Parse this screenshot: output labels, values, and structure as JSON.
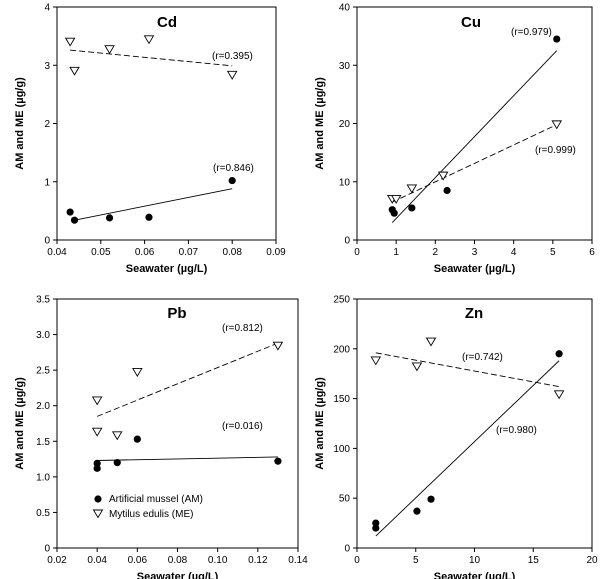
{
  "legend": {
    "am_label": "Artificial mussel (AM)",
    "me_label": "Mytilus edulis (ME)",
    "placement": "bottom-left of Pb panel"
  },
  "chart_data": [
    {
      "type": "scatter",
      "title": "Cd",
      "xlabel": "Seawater (µg/L)",
      "ylabel": "AM and ME (µg/g)",
      "xlim": [
        0.04,
        0.09
      ],
      "ylim": [
        0,
        4
      ],
      "xticks": [
        "0.04",
        "0.05",
        "0.06",
        "0.07",
        "0.08",
        "0.09"
      ],
      "yticks": [
        "0",
        "1",
        "2",
        "3",
        "4"
      ],
      "series": [
        {
          "name": "Artificial mussel (AM)",
          "marker": "filled-circle",
          "x": [
            0.043,
            0.044,
            0.052,
            0.061,
            0.08
          ],
          "y": [
            0.48,
            0.34,
            0.38,
            0.39,
            1.02
          ],
          "fit": {
            "x": [
              0.044,
              0.08
            ],
            "y": [
              0.34,
              0.88
            ],
            "style": "solid"
          },
          "r_label": "(r=0.846)"
        },
        {
          "name": "Mytilus edulis (ME)",
          "marker": "open-triangle-down",
          "x": [
            0.043,
            0.044,
            0.052,
            0.061,
            0.08
          ],
          "y": [
            3.4,
            2.9,
            3.27,
            3.44,
            2.83
          ],
          "fit": {
            "x": [
              0.043,
              0.08
            ],
            "y": [
              3.26,
              2.99
            ],
            "style": "dashed"
          },
          "r_label": "(r=0.395)"
        }
      ]
    },
    {
      "type": "scatter",
      "title": "Cu",
      "xlabel": "Seawater (µg/L)",
      "ylabel": "AM and ME (µg/g)",
      "xlim": [
        0,
        6
      ],
      "ylim": [
        0,
        40
      ],
      "xticks": [
        "0",
        "1",
        "2",
        "3",
        "4",
        "5",
        "6"
      ],
      "yticks": [
        "0",
        "10",
        "20",
        "30",
        "40"
      ],
      "series": [
        {
          "name": "Artificial mussel (AM)",
          "marker": "filled-circle",
          "x": [
            0.9,
            0.95,
            1.4,
            2.3,
            5.1
          ],
          "y": [
            5.2,
            4.6,
            5.5,
            8.5,
            34.5
          ],
          "fit": {
            "x": [
              0.9,
              5.1
            ],
            "y": [
              3.0,
              32.5
            ],
            "style": "solid"
          },
          "r_label": "(r=0.979)"
        },
        {
          "name": "Mytilus edulis (ME)",
          "marker": "open-triangle-down",
          "x": [
            0.9,
            1.0,
            1.4,
            2.2,
            5.1
          ],
          "y": [
            7.0,
            7.0,
            8.8,
            11.0,
            19.8
          ],
          "fit": {
            "x": [
              0.9,
              5.1
            ],
            "y": [
              6.5,
              19.8
            ],
            "style": "dashed"
          },
          "r_label": "(r=0.999)"
        }
      ]
    },
    {
      "type": "scatter",
      "title": "Pb",
      "xlabel": "Seawater (µg/L)",
      "ylabel": "AM and ME (µg/g)",
      "xlim": [
        0.02,
        0.14
      ],
      "ylim": [
        0,
        3.5
      ],
      "xticks": [
        "0.02",
        "0.04",
        "0.06",
        "0.08",
        "0.10",
        "0.12",
        "0.14"
      ],
      "yticks": [
        "0",
        "0.5",
        "1.0",
        "1.5",
        "2.0",
        "2.5",
        "3.0",
        "3.5"
      ],
      "series": [
        {
          "name": "Artificial mussel (AM)",
          "marker": "filled-circle",
          "x": [
            0.04,
            0.04,
            0.05,
            0.06,
            0.13
          ],
          "y": [
            1.19,
            1.12,
            1.2,
            1.53,
            1.22
          ],
          "fit": {
            "x": [
              0.04,
              0.13
            ],
            "y": [
              1.23,
              1.28
            ],
            "style": "solid"
          },
          "r_label": "(r=0.016)"
        },
        {
          "name": "Mytilus edulis (ME)",
          "marker": "open-triangle-down",
          "x": [
            0.04,
            0.04,
            0.05,
            0.06,
            0.13
          ],
          "y": [
            2.07,
            1.63,
            1.58,
            2.47,
            2.84
          ],
          "fit": {
            "x": [
              0.04,
              0.13
            ],
            "y": [
              1.85,
              2.88
            ],
            "style": "dashed"
          },
          "r_label": "(r=0.812)"
        }
      ]
    },
    {
      "type": "scatter",
      "title": "Zn",
      "xlabel": "Seawater (µg/L)",
      "ylabel": "AM and ME (µg/g)",
      "xlim": [
        0,
        20
      ],
      "ylim": [
        0,
        250
      ],
      "xticks": [
        "0",
        "5",
        "10",
        "15",
        "20"
      ],
      "yticks": [
        "0",
        "50",
        "100",
        "150",
        "200",
        "250"
      ],
      "series": [
        {
          "name": "Artificial mussel (AM)",
          "marker": "filled-circle",
          "x": [
            1.6,
            1.6,
            5.1,
            6.3,
            17.2
          ],
          "y": [
            25,
            20,
            37,
            49,
            195
          ],
          "fit": {
            "x": [
              1.6,
              17.2
            ],
            "y": [
              12,
              188
            ],
            "style": "solid"
          },
          "r_label": "(r=0.980)"
        },
        {
          "name": "Mytilus edulis (ME)",
          "marker": "open-triangle-down",
          "x": [
            1.6,
            5.1,
            6.3,
            17.2
          ],
          "y": [
            188,
            182,
            207,
            154
          ],
          "fit": {
            "x": [
              1.6,
              17.2
            ],
            "y": [
              196,
              162
            ],
            "style": "dashed"
          },
          "r_label": "(r=0.742)"
        }
      ]
    }
  ]
}
